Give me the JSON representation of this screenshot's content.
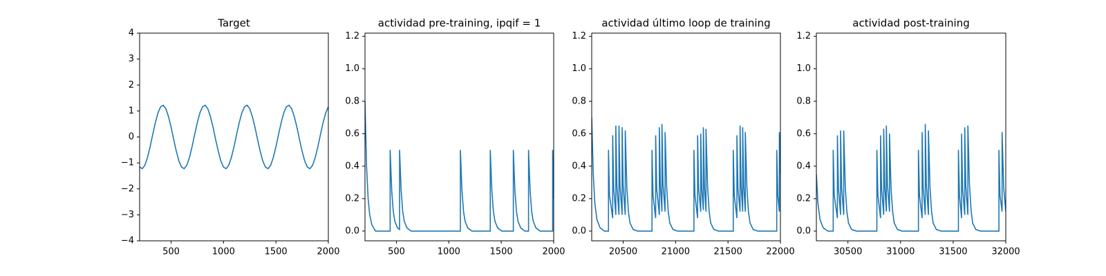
{
  "chart_data": [
    {
      "type": "line",
      "title": "Target",
      "color": "#1f77b4",
      "xlim": [
        200,
        2000
      ],
      "xticks": [
        500,
        1000,
        1500,
        2000
      ],
      "ylim": [
        -4,
        4
      ],
      "yticks": [
        {
          "value": -4,
          "label": "−4"
        },
        {
          "value": -3,
          "label": "−3"
        },
        {
          "value": -2,
          "label": "−2"
        },
        {
          "value": -1,
          "label": "−1"
        },
        0,
        1,
        2,
        3,
        4
      ],
      "x": [
        200,
        225,
        250,
        275,
        300,
        325,
        350,
        375,
        400,
        425,
        450,
        475,
        500,
        525,
        550,
        575,
        600,
        625,
        650,
        675,
        700,
        725,
        750,
        775,
        800,
        825,
        850,
        875,
        900,
        925,
        950,
        975,
        1000,
        1025,
        1050,
        1075,
        1100,
        1125,
        1150,
        1175,
        1200,
        1225,
        1250,
        1275,
        1300,
        1325,
        1350,
        1375,
        1400,
        1425,
        1450,
        1475,
        1500,
        1525,
        1550,
        1575,
        1600,
        1625,
        1650,
        1675,
        1700,
        1725,
        1750,
        1775,
        1800,
        1825,
        1850,
        1875,
        1900,
        1925,
        1950,
        1975,
        2000
      ],
      "values": [
        -1.16,
        -1.22,
        -1.09,
        -0.79,
        -0.38,
        0.1,
        0.55,
        0.93,
        1.16,
        1.22,
        1.09,
        0.79,
        0.38,
        -0.1,
        -0.55,
        -0.93,
        -1.16,
        -1.22,
        -1.09,
        -0.79,
        -0.38,
        0.1,
        0.55,
        0.93,
        1.16,
        1.22,
        1.09,
        0.79,
        0.38,
        -0.1,
        -0.55,
        -0.93,
        -1.16,
        -1.22,
        -1.09,
        -0.79,
        -0.38,
        0.1,
        0.55,
        0.93,
        1.16,
        1.22,
        1.09,
        0.79,
        0.38,
        -0.1,
        -0.55,
        -0.93,
        -1.16,
        -1.22,
        -1.09,
        -0.79,
        -0.38,
        0.1,
        0.55,
        0.93,
        1.16,
        1.22,
        1.09,
        0.79,
        0.38,
        -0.1,
        -0.55,
        -0.93,
        -1.16,
        -1.22,
        -1.09,
        -0.79,
        -0.38,
        0.1,
        0.55,
        0.93,
        1.16
      ]
    },
    {
      "type": "line",
      "title": "actividad pre-training, ipqif = 1",
      "color": "#1f77b4",
      "xlim": [
        200,
        2000
      ],
      "xticks": [
        500,
        1000,
        1500,
        2000
      ],
      "ylim": [
        -0.06,
        1.22
      ],
      "yticks": [
        {
          "value": 0,
          "label": "0.0"
        },
        0.2,
        0.4,
        0.6,
        0.8,
        {
          "value": 1,
          "label": "1.0"
        },
        1.2
      ],
      "x": [
        200,
        215,
        230,
        245,
        265,
        300,
        440,
        440,
        455,
        470,
        485,
        510,
        530,
        530,
        545,
        560,
        575,
        600,
        640,
        1110,
        1110,
        1125,
        1140,
        1155,
        1180,
        1220,
        1395,
        1395,
        1410,
        1425,
        1440,
        1465,
        1505,
        1615,
        1615,
        1630,
        1645,
        1660,
        1685,
        1725,
        1760,
        1760,
        1775,
        1790,
        1805,
        1830,
        1870,
        1990,
        1990,
        2000
      ],
      "values": [
        0.8,
        0.4,
        0.2,
        0.1,
        0.04,
        0,
        0,
        0.5,
        0.25,
        0.12,
        0.06,
        0.02,
        0.01,
        0.5,
        0.25,
        0.12,
        0.06,
        0.02,
        0,
        0,
        0.5,
        0.25,
        0.12,
        0.06,
        0.02,
        0,
        0,
        0.5,
        0.25,
        0.12,
        0.06,
        0.02,
        0,
        0,
        0.5,
        0.25,
        0.12,
        0.06,
        0.02,
        0,
        0,
        0.5,
        0.25,
        0.12,
        0.06,
        0.02,
        0,
        0,
        0.5,
        0.2
      ]
    },
    {
      "type": "line",
      "title": "actividad último loop de training",
      "color": "#1f77b4",
      "xlim": [
        20200,
        22000
      ],
      "xticks": [
        20500,
        21000,
        21500,
        22000
      ],
      "ylim": [
        -0.06,
        1.22
      ],
      "yticks": [
        {
          "value": 0,
          "label": "0.0"
        },
        0.2,
        0.4,
        0.6,
        0.8,
        {
          "value": 1,
          "label": "1.0"
        },
        1.2
      ],
      "x": [
        20200,
        20215,
        20230,
        20250,
        20280,
        20320,
        20360,
        20360,
        20370,
        20400,
        20400,
        20410,
        20430,
        20430,
        20440,
        20460,
        20460,
        20470,
        20490,
        20490,
        20500,
        20520,
        20520,
        20535,
        20550,
        20565,
        20595,
        20640,
        20775,
        20775,
        20785,
        20810,
        20810,
        20820,
        20845,
        20845,
        20855,
        20870,
        20870,
        20880,
        20900,
        20900,
        20915,
        20930,
        20945,
        20975,
        21020,
        21175,
        21175,
        21185,
        21210,
        21210,
        21220,
        21240,
        21240,
        21250,
        21265,
        21265,
        21275,
        21290,
        21290,
        21305,
        21320,
        21335,
        21365,
        21410,
        21550,
        21550,
        21560,
        21585,
        21585,
        21595,
        21615,
        21615,
        21625,
        21640,
        21640,
        21650,
        21665,
        21665,
        21680,
        21695,
        21710,
        21740,
        21785,
        21965,
        21965,
        21975,
        21990,
        21990,
        22000
      ],
      "values": [
        0.7,
        0.35,
        0.17,
        0.07,
        0.02,
        0,
        0,
        0.5,
        0.22,
        0.08,
        0.59,
        0.26,
        0.1,
        0.65,
        0.28,
        0.1,
        0.65,
        0.28,
        0.1,
        0.64,
        0.28,
        0.1,
        0.62,
        0.27,
        0.12,
        0.05,
        0.01,
        0,
        0,
        0.5,
        0.22,
        0.08,
        0.59,
        0.26,
        0.1,
        0.64,
        0.28,
        0.12,
        0.66,
        0.29,
        0.12,
        0.61,
        0.27,
        0.12,
        0.05,
        0.01,
        0,
        0,
        0.5,
        0.22,
        0.08,
        0.59,
        0.26,
        0.12,
        0.6,
        0.26,
        0.13,
        0.64,
        0.28,
        0.12,
        0.63,
        0.28,
        0.12,
        0.05,
        0.01,
        0,
        0,
        0.5,
        0.22,
        0.08,
        0.59,
        0.26,
        0.12,
        0.65,
        0.28,
        0.12,
        0.64,
        0.28,
        0.12,
        0.61,
        0.27,
        0.12,
        0.05,
        0.01,
        0,
        0,
        0.5,
        0.22,
        0.12,
        0.61,
        0.35
      ]
    },
    {
      "type": "line",
      "title": "actividad post-training",
      "color": "#1f77b4",
      "xlim": [
        30200,
        32000
      ],
      "xticks": [
        30500,
        31000,
        31500,
        32000
      ],
      "ylim": [
        -0.06,
        1.22
      ],
      "yticks": [
        {
          "value": 0,
          "label": "0.0"
        },
        0.2,
        0.4,
        0.6,
        0.8,
        {
          "value": 1,
          "label": "1.0"
        },
        1.2
      ],
      "x": [
        30200,
        30215,
        30235,
        30265,
        30310,
        30360,
        30360,
        30370,
        30400,
        30400,
        30410,
        30430,
        30430,
        30440,
        30460,
        30460,
        30475,
        30490,
        30505,
        30535,
        30580,
        30775,
        30775,
        30785,
        30810,
        30810,
        30820,
        30840,
        30840,
        30850,
        30865,
        30865,
        30875,
        30895,
        30895,
        30910,
        30925,
        30940,
        30970,
        31015,
        31170,
        31170,
        31180,
        31205,
        31205,
        31215,
        31235,
        31235,
        31245,
        31265,
        31265,
        31280,
        31295,
        31310,
        31340,
        31385,
        31550,
        31550,
        31560,
        31580,
        31580,
        31590,
        31610,
        31610,
        31620,
        31640,
        31640,
        31655,
        31670,
        31685,
        31715,
        31760,
        31935,
        31935,
        31945,
        31965,
        31965,
        31980,
        32000
      ],
      "values": [
        0.35,
        0.17,
        0.07,
        0.02,
        0,
        0,
        0.5,
        0.22,
        0.08,
        0.59,
        0.26,
        0.1,
        0.62,
        0.27,
        0.1,
        0.62,
        0.27,
        0.12,
        0.05,
        0.01,
        0,
        0,
        0.5,
        0.22,
        0.08,
        0.59,
        0.26,
        0.1,
        0.63,
        0.28,
        0.12,
        0.65,
        0.29,
        0.12,
        0.6,
        0.26,
        0.12,
        0.05,
        0.01,
        0,
        0,
        0.5,
        0.22,
        0.08,
        0.61,
        0.27,
        0.1,
        0.66,
        0.29,
        0.1,
        0.62,
        0.27,
        0.12,
        0.05,
        0.01,
        0,
        0,
        0.5,
        0.22,
        0.08,
        0.6,
        0.26,
        0.1,
        0.64,
        0.28,
        0.1,
        0.65,
        0.29,
        0.13,
        0.05,
        0.01,
        0,
        0,
        0.5,
        0.22,
        0.12,
        0.61,
        0.27,
        0.12
      ]
    }
  ]
}
